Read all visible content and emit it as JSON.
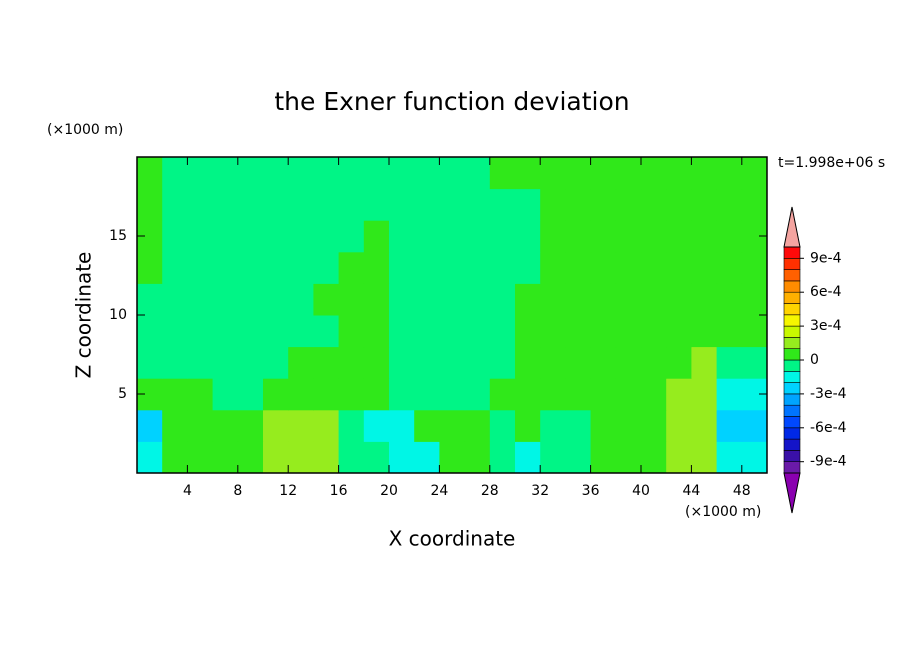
{
  "chart_data": {
    "type": "contour",
    "title": "the Exner function deviation",
    "x_label": "X coordinate",
    "y_label": "Z coordinate",
    "x_unit": "(×1000 m)",
    "y_unit": "(×1000 m)",
    "time_label": "t=1.998e+06 s",
    "xlim": [
      0,
      50
    ],
    "ylim": [
      0,
      20
    ],
    "xticks": [
      4,
      8,
      12,
      16,
      20,
      24,
      28,
      32,
      36,
      40,
      44,
      48
    ],
    "yticks": [
      5,
      10,
      15
    ],
    "x": [
      1,
      3,
      5,
      7,
      9,
      11,
      13,
      15,
      17,
      19,
      21,
      23,
      25,
      27,
      29,
      31,
      33,
      35,
      37,
      39,
      41,
      43,
      45,
      47,
      49
    ],
    "y": [
      1,
      3,
      5,
      7,
      9,
      11,
      13,
      15,
      17,
      19
    ],
    "z": [
      [
        -0.00015,
        5e-05,
        5e-05,
        5e-05,
        5e-05,
        0.00015,
        0.00015,
        0.00015,
        -5e-05,
        -5e-05,
        -0.00015,
        -0.00015,
        5e-05,
        5e-05,
        -5e-05,
        -0.00015,
        -5e-05,
        -5e-05,
        5e-05,
        5e-05,
        5e-05,
        0.00015,
        0.00015,
        -0.00015,
        -0.00015
      ],
      [
        -0.00025,
        5e-05,
        5e-05,
        5e-05,
        5e-05,
        0.00015,
        0.00015,
        0.00015,
        -5e-05,
        -0.00015,
        -0.00015,
        5e-05,
        5e-05,
        5e-05,
        -5e-05,
        5e-05,
        -5e-05,
        -5e-05,
        5e-05,
        5e-05,
        5e-05,
        0.00015,
        0.00015,
        -0.00025,
        -0.00025
      ],
      [
        5e-05,
        5e-05,
        5e-05,
        -5e-05,
        -5e-05,
        5e-05,
        5e-05,
        5e-05,
        5e-05,
        5e-05,
        -5e-05,
        -5e-05,
        -5e-05,
        -5e-05,
        5e-05,
        5e-05,
        5e-05,
        5e-05,
        5e-05,
        5e-05,
        5e-05,
        0.00015,
        0.00015,
        -0.00015,
        -0.00015
      ],
      [
        -5e-05,
        -5e-05,
        -5e-05,
        -5e-05,
        -5e-05,
        -5e-05,
        5e-05,
        5e-05,
        5e-05,
        5e-05,
        -5e-05,
        -5e-05,
        -5e-05,
        -5e-05,
        -5e-05,
        5e-05,
        5e-05,
        5e-05,
        5e-05,
        5e-05,
        5e-05,
        5e-05,
        0.00015,
        -5e-05,
        -5e-05
      ],
      [
        -5e-05,
        -5e-05,
        -5e-05,
        -5e-05,
        -5e-05,
        -5e-05,
        -5e-05,
        -5e-05,
        5e-05,
        5e-05,
        -5e-05,
        -5e-05,
        -5e-05,
        -5e-05,
        -5e-05,
        5e-05,
        5e-05,
        5e-05,
        5e-05,
        5e-05,
        5e-05,
        5e-05,
        5e-05,
        5e-05,
        5e-05
      ],
      [
        -5e-05,
        -5e-05,
        -5e-05,
        -5e-05,
        -5e-05,
        -5e-05,
        -5e-05,
        5e-05,
        5e-05,
        5e-05,
        -5e-05,
        -5e-05,
        -5e-05,
        -5e-05,
        -5e-05,
        5e-05,
        5e-05,
        5e-05,
        5e-05,
        5e-05,
        5e-05,
        5e-05,
        5e-05,
        5e-05,
        5e-05
      ],
      [
        5e-05,
        -5e-05,
        -5e-05,
        -5e-05,
        -5e-05,
        -5e-05,
        -5e-05,
        -5e-05,
        5e-05,
        5e-05,
        -5e-05,
        -5e-05,
        -5e-05,
        -5e-05,
        -5e-05,
        -5e-05,
        5e-05,
        5e-05,
        5e-05,
        5e-05,
        5e-05,
        5e-05,
        5e-05,
        5e-05,
        5e-05
      ],
      [
        5e-05,
        -5e-05,
        -5e-05,
        -5e-05,
        -5e-05,
        -5e-05,
        -5e-05,
        -5e-05,
        -5e-05,
        5e-05,
        -5e-05,
        -5e-05,
        -5e-05,
        -5e-05,
        -5e-05,
        -5e-05,
        5e-05,
        5e-05,
        5e-05,
        5e-05,
        5e-05,
        5e-05,
        5e-05,
        5e-05,
        5e-05
      ],
      [
        5e-05,
        -5e-05,
        -5e-05,
        -5e-05,
        -5e-05,
        -5e-05,
        -5e-05,
        -5e-05,
        -5e-05,
        -5e-05,
        -5e-05,
        -5e-05,
        -5e-05,
        -5e-05,
        -5e-05,
        -5e-05,
        5e-05,
        5e-05,
        5e-05,
        5e-05,
        5e-05,
        5e-05,
        5e-05,
        5e-05,
        5e-05
      ],
      [
        5e-05,
        -5e-05,
        -5e-05,
        -5e-05,
        -5e-05,
        -5e-05,
        -5e-05,
        -5e-05,
        -5e-05,
        -5e-05,
        -5e-05,
        -5e-05,
        -5e-05,
        -5e-05,
        5e-05,
        5e-05,
        5e-05,
        5e-05,
        5e-05,
        5e-05,
        5e-05,
        5e-05,
        5e-05,
        5e-05,
        5e-05
      ]
    ],
    "levels": [
      -0.001,
      -0.0009,
      -0.0008,
      -0.0007,
      -0.0006,
      -0.0005,
      -0.0004,
      -0.0003,
      -0.0002,
      -0.0001,
      0,
      0.0001,
      0.0002,
      0.0003,
      0.0004,
      0.0005,
      0.0006,
      0.0007,
      0.0008,
      0.0009,
      0.001
    ],
    "colors": [
      "#6a1aa8",
      "#3a10a8",
      "#1414c8",
      "#0028e6",
      "#0048ff",
      "#0074ff",
      "#00a4ff",
      "#00d2ff",
      "#00f6e6",
      "#00f586",
      "#30e81a",
      "#96ec1e",
      "#c8f800",
      "#f6f600",
      "#ffd400",
      "#ffb000",
      "#ff8c00",
      "#ff6000",
      "#ff3000",
      "#ff0a0a"
    ],
    "extend_colors": {
      "min": "#8a00b0",
      "max": "#f4a4a0"
    },
    "colorbar_ticks": [
      {
        "value": -0.0009,
        "label": "-9e-4"
      },
      {
        "value": -0.0006,
        "label": "-6e-4"
      },
      {
        "value": -0.0003,
        "label": "-3e-4"
      },
      0,
      {
        "value": 0.0003,
        "label": "3e-4"
      },
      {
        "value": 0.0006,
        "label": "6e-4"
      },
      {
        "value": 0.0009,
        "label": "9e-4"
      }
    ]
  }
}
